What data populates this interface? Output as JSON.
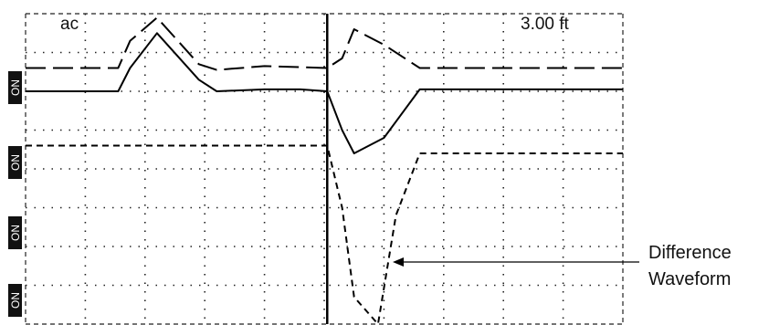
{
  "display": {
    "mode_label": "ac",
    "range_label": "3.00 ft"
  },
  "channels": [
    {
      "label": "ON"
    },
    {
      "label": "ON"
    },
    {
      "label": "ON"
    },
    {
      "label": "ON"
    }
  ],
  "annotation": {
    "line1": "Difference",
    "line2": "Waveform"
  },
  "chart_data": {
    "type": "line",
    "grid": true,
    "x_divisions": 10,
    "y_divisions": 8,
    "cursor_x_div": 5.05,
    "series": [
      {
        "line_style": "long-dash",
        "x": [
          0,
          1.55,
          1.75,
          2.2,
          2.9,
          3.2,
          4.0,
          4.6,
          5.05,
          5.3,
          5.5,
          6.0,
          6.6,
          10
        ],
        "y": [
          6.6,
          6.6,
          7.3,
          7.9,
          6.7,
          6.55,
          6.65,
          6.62,
          6.6,
          6.85,
          7.6,
          7.2,
          6.6,
          6.6
        ]
      },
      {
        "line_style": "solid",
        "x": [
          0,
          1.55,
          1.75,
          2.2,
          2.9,
          3.2,
          4.0,
          4.6,
          5.05,
          5.3,
          5.5,
          6.0,
          6.6,
          10
        ],
        "y": [
          6.0,
          6.0,
          6.6,
          7.5,
          6.3,
          6.0,
          6.05,
          6.05,
          6.0,
          5.0,
          4.4,
          4.8,
          6.05,
          6.05
        ]
      },
      {
        "line_style": "short-dash",
        "x": [
          0,
          5.05,
          5.3,
          5.5,
          5.9,
          6.2,
          6.6,
          10
        ],
        "y": [
          4.6,
          4.6,
          3.0,
          0.7,
          0.0,
          2.8,
          4.4,
          4.4
        ]
      }
    ]
  }
}
